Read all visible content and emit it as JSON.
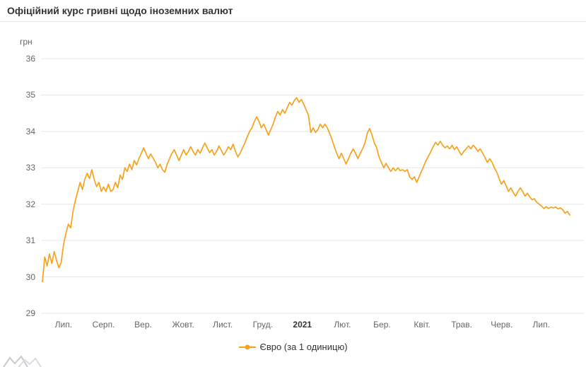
{
  "header": {
    "title": "Офіційний курс гривні щодо іноземних валют"
  },
  "colors": {
    "line": "#f6a21d",
    "grid": "#e6e6e6",
    "title": "#333333",
    "tick": "#666666"
  },
  "chart_data": {
    "type": "line",
    "title": "Офіційний курс гривні щодо іноземних валют",
    "ylabel": "грн",
    "ylim": [
      29,
      36
    ],
    "y_ticks": [
      36,
      35,
      34,
      33,
      32,
      31,
      30,
      29
    ],
    "grid": true,
    "legend_position": "bottom",
    "x_tick_labels": [
      "Лип.",
      "Серп.",
      "Вер.",
      "Жовт.",
      "Лист.",
      "Груд.",
      "2021",
      "Лют.",
      "Бер.",
      "Квіт.",
      "Трав.",
      "Черв.",
      "Лип."
    ],
    "x_tick_positions": [
      0.04,
      0.116,
      0.191,
      0.267,
      0.342,
      0.418,
      0.493,
      0.569,
      0.644,
      0.72,
      0.795,
      0.871,
      0.946
    ],
    "bold_x_tick": "2021",
    "series": [
      {
        "name": "Євро (за 1 одиницю)",
        "color": "#f6a21d",
        "values": [
          29.87,
          30.55,
          30.3,
          30.63,
          30.37,
          30.7,
          30.45,
          30.25,
          30.4,
          30.9,
          31.2,
          31.45,
          31.35,
          31.8,
          32.1,
          32.35,
          32.6,
          32.4,
          32.68,
          32.85,
          32.7,
          32.95,
          32.68,
          32.48,
          32.6,
          32.35,
          32.47,
          32.35,
          32.55,
          32.35,
          32.4,
          32.6,
          32.45,
          32.8,
          32.68,
          33.0,
          32.9,
          33.1,
          32.95,
          33.2,
          33.08,
          33.25,
          33.4,
          33.55,
          33.4,
          33.25,
          33.38,
          33.27,
          33.15,
          33.0,
          33.1,
          32.95,
          32.88,
          33.1,
          33.25,
          33.4,
          33.5,
          33.35,
          33.2,
          33.35,
          33.5,
          33.35,
          33.45,
          33.58,
          33.45,
          33.35,
          33.5,
          33.4,
          33.55,
          33.68,
          33.55,
          33.42,
          33.5,
          33.35,
          33.45,
          33.6,
          33.48,
          33.35,
          33.45,
          33.58,
          33.5,
          33.65,
          33.45,
          33.3,
          33.4,
          33.55,
          33.68,
          33.85,
          34.0,
          34.1,
          34.27,
          34.4,
          34.28,
          34.1,
          34.2,
          34.05,
          33.9,
          34.05,
          34.2,
          34.4,
          34.55,
          34.45,
          34.6,
          34.5,
          34.65,
          34.8,
          34.72,
          34.85,
          34.93,
          34.8,
          34.88,
          34.75,
          34.6,
          34.45,
          33.97,
          34.1,
          33.97,
          34.05,
          34.2,
          34.1,
          34.2,
          34.1,
          33.95,
          33.78,
          33.58,
          33.4,
          33.25,
          33.4,
          33.25,
          33.1,
          33.25,
          33.4,
          33.52,
          33.4,
          33.25,
          33.4,
          33.52,
          33.68,
          33.95,
          34.08,
          33.9,
          33.68,
          33.55,
          33.3,
          33.15,
          33.0,
          33.12,
          33.0,
          32.9,
          33.0,
          32.92,
          33.0,
          32.92,
          32.95,
          32.9,
          32.95,
          32.75,
          32.68,
          32.75,
          32.6,
          32.75,
          32.9,
          33.05,
          33.2,
          33.32,
          33.45,
          33.58,
          33.7,
          33.62,
          33.73,
          33.62,
          33.55,
          33.6,
          33.52,
          33.62,
          33.5,
          33.58,
          33.45,
          33.35,
          33.45,
          33.52,
          33.6,
          33.52,
          33.62,
          33.55,
          33.45,
          33.52,
          33.4,
          33.28,
          33.15,
          33.25,
          33.15,
          33.0,
          32.88,
          32.7,
          32.55,
          32.65,
          32.5,
          32.35,
          32.45,
          32.32,
          32.22,
          32.35,
          32.45,
          32.35,
          32.22,
          32.3,
          32.2,
          32.12,
          32.15,
          32.05,
          32.0,
          31.95,
          31.88,
          31.93,
          31.88,
          31.92,
          31.9,
          31.92,
          31.87,
          31.9,
          31.85,
          31.75,
          31.8,
          31.7
        ]
      }
    ]
  }
}
